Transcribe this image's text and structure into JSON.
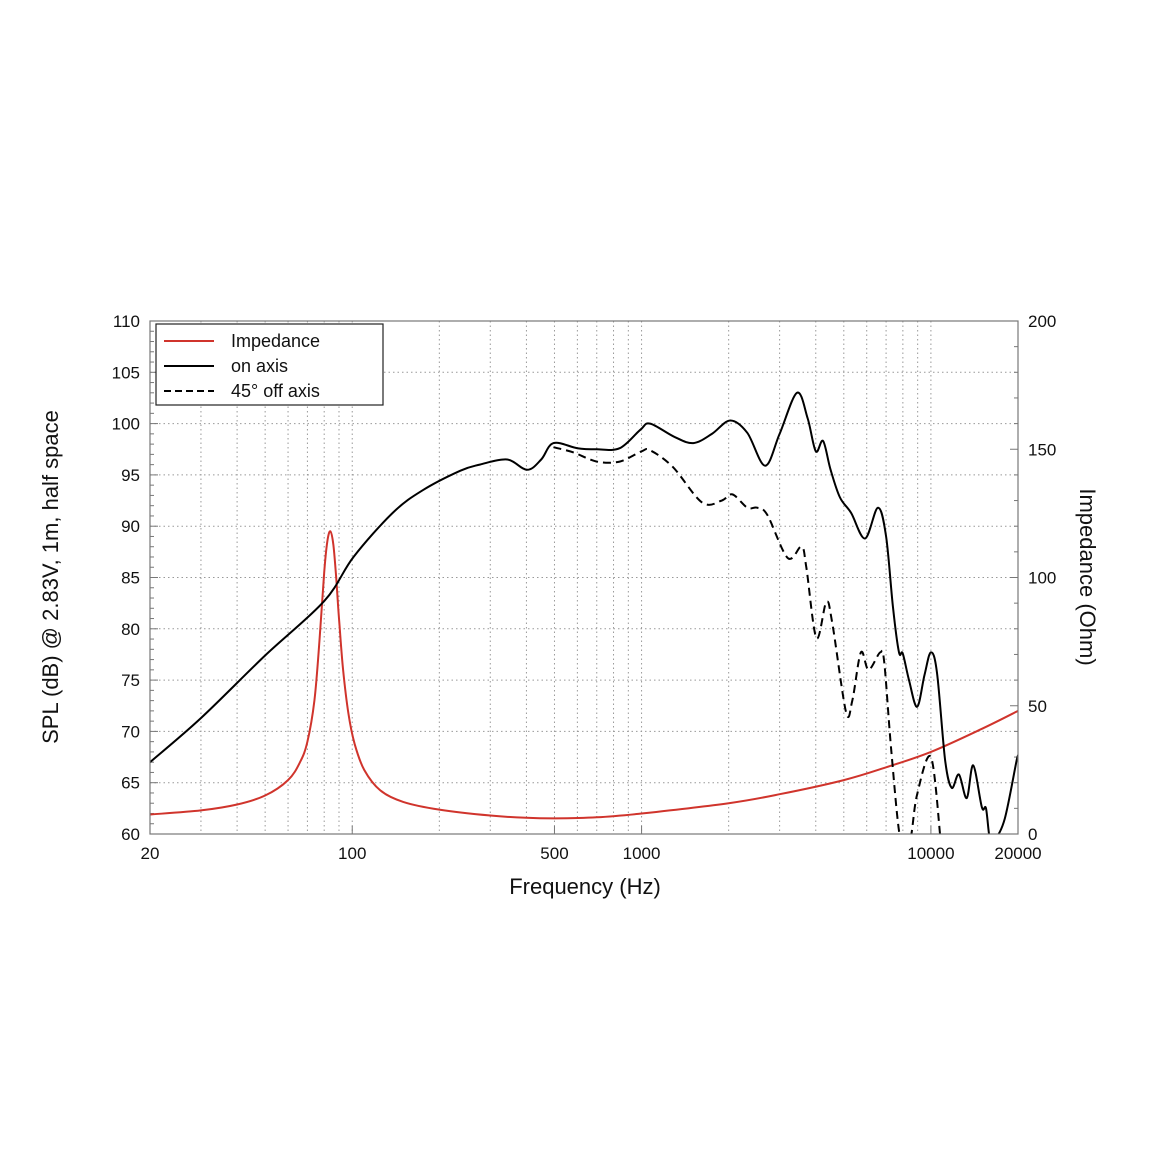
{
  "chart_data": {
    "type": "line",
    "xlabel": "Frequency (Hz)",
    "ylabel": "SPL (dB) @ 2.83V, 1m, half space",
    "ylabel_right": "Impedance (Ohm)",
    "xscale": "log",
    "xlim": [
      20,
      20000
    ],
    "ylim": [
      60,
      110
    ],
    "ylim_right": [
      0,
      200
    ],
    "grid": true,
    "legend_position": "top-left",
    "x_ticks": [
      20,
      100,
      500,
      1000,
      10000,
      20000
    ],
    "x_tick_labels": [
      "20",
      "100",
      "500",
      "1000",
      "10000",
      "20000"
    ],
    "y_ticks": [
      110,
      105,
      100,
      95,
      90,
      85,
      80,
      75,
      70,
      65,
      60
    ],
    "y_tick_labels": [
      "110",
      "105",
      "100",
      "95",
      "90",
      "85",
      "80",
      "75",
      "70",
      "65",
      "60"
    ],
    "y_right_ticks": [
      200,
      150,
      100,
      50,
      0
    ],
    "y_right_tick_labels": [
      "200",
      "150",
      "100",
      "50",
      "0"
    ],
    "series": [
      {
        "name": "Impedance",
        "axis": "right",
        "color": "#d0342c",
        "style": "solid",
        "x": [
          20,
          30,
          40,
          50,
          60,
          66,
          70,
          74,
          77,
          80,
          82,
          84,
          86,
          88,
          90,
          93,
          97,
          102,
          110,
          125,
          150,
          200,
          300,
          400,
          500,
          700,
          1000,
          2000,
          3000,
          5000,
          7000,
          10000,
          15000,
          20000
        ],
        "y": [
          7.6,
          9.2,
          11.5,
          15,
          21,
          28,
          36,
          52,
          75,
          102,
          114,
          118,
          113,
          100,
          84,
          64,
          47,
          35,
          25,
          17,
          12.5,
          9.5,
          7.2,
          6.3,
          6.1,
          6.5,
          8,
          12,
          15.5,
          21,
          26,
          32,
          41,
          48
        ]
      },
      {
        "name": "on axis",
        "axis": "left",
        "color": "#000000",
        "style": "solid",
        "x": [
          20,
          30,
          50,
          80,
          101,
          138,
          175,
          236,
          276,
          343,
          402,
          450,
          496,
          600,
          700,
          840,
          990,
          1070,
          1300,
          1510,
          1750,
          2024,
          2320,
          2672,
          3000,
          3446,
          3750,
          4000,
          4240,
          4500,
          4850,
          5300,
          5920,
          6560,
          7000,
          7400,
          7760,
          7990,
          8400,
          8960,
          9500,
          10000,
          10500,
          11200,
          11800,
          12500,
          13300,
          14000,
          15000,
          15500,
          16000,
          16600,
          18000,
          19800,
          20000
        ],
        "y": [
          67.0,
          71.3,
          77.4,
          82.7,
          87.0,
          91.3,
          93.5,
          95.4,
          96.0,
          96.5,
          95.5,
          96.5,
          98.1,
          97.6,
          97.5,
          97.6,
          99.4,
          100.0,
          98.7,
          98.1,
          99.0,
          100.3,
          99.1,
          95.9,
          99.0,
          103.0,
          100.5,
          97.3,
          98.3,
          95.5,
          92.8,
          91.3,
          88.8,
          91.8,
          89.0,
          82.0,
          77.7,
          77.6,
          75.0,
          72.4,
          75.5,
          77.7,
          75.7,
          67.2,
          64.5,
          65.8,
          63.5,
          66.7,
          62.6,
          62.5,
          60.0,
          60.0,
          61.5,
          67.2,
          67.4
        ]
      },
      {
        "name": "45° off axis",
        "axis": "left",
        "color": "#000000",
        "style": "dashed",
        "x": [
          496,
          580,
          700,
          840,
          1000,
          1070,
          1280,
          1620,
          1890,
          2060,
          2320,
          2510,
          2720,
          3200,
          3570,
          3710,
          4020,
          4350,
          4560,
          5090,
          5350,
          5730,
          6090,
          6680,
          6900,
          7300,
          7850,
          8470,
          8950,
          10000,
          10800
        ],
        "y": [
          97.7,
          97.2,
          96.3,
          96.3,
          97.3,
          97.4,
          95.8,
          92.3,
          92.5,
          93.1,
          91.8,
          91.8,
          91.1,
          86.9,
          88.0,
          86.0,
          79.1,
          82.6,
          80.6,
          71.9,
          73.0,
          77.7,
          76.0,
          77.7,
          76.7,
          68.0,
          60.0,
          60.0,
          63.8,
          67.5,
          60.0
        ]
      }
    ]
  }
}
